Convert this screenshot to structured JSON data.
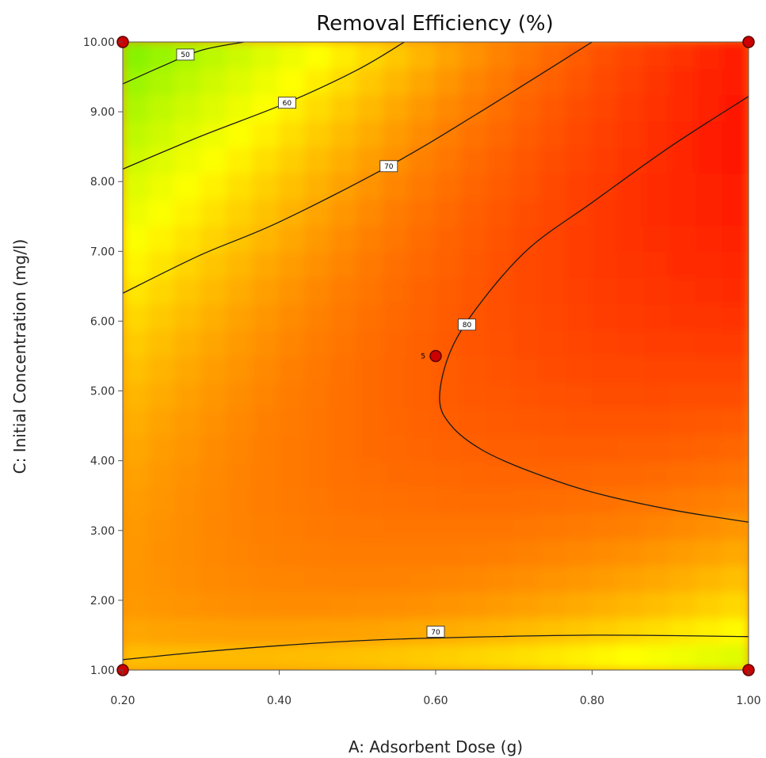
{
  "chart_data": {
    "type": "contour",
    "title": "Removal Efficiency (%)",
    "xlabel": "A: Adsorbent Dose (g)",
    "ylabel": "C: Initial Concentration (mg/l)",
    "xlim": [
      0.2,
      1.0
    ],
    "ylim": [
      1.0,
      10.0
    ],
    "x_ticks": [
      "0.20",
      "0.40",
      "0.60",
      "0.80",
      "1.00"
    ],
    "y_ticks": [
      "1.00",
      "2.00",
      "3.00",
      "4.00",
      "5.00",
      "6.00",
      "7.00",
      "8.00",
      "9.00",
      "10.00"
    ],
    "colormap": [
      "#00e600",
      "#ffff00",
      "#ff7f00",
      "#ff0000"
    ],
    "contours": [
      {
        "level": "50",
        "label_pos": [
          0.28,
          9.82
        ],
        "points": [
          [
            0.2,
            9.4
          ],
          [
            0.25,
            9.65
          ],
          [
            0.3,
            9.88
          ],
          [
            0.355,
            10.0
          ]
        ]
      },
      {
        "level": "60",
        "label_pos": [
          0.41,
          9.13
        ],
        "points": [
          [
            0.2,
            8.18
          ],
          [
            0.3,
            8.65
          ],
          [
            0.41,
            9.13
          ],
          [
            0.5,
            9.6
          ],
          [
            0.56,
            10.0
          ]
        ]
      },
      {
        "level": "70",
        "label_pos": [
          0.54,
          8.22
        ],
        "points": [
          [
            0.2,
            6.4
          ],
          [
            0.3,
            6.95
          ],
          [
            0.4,
            7.42
          ],
          [
            0.54,
            8.22
          ],
          [
            0.65,
            8.95
          ],
          [
            0.8,
            10.0
          ]
        ]
      },
      {
        "level": "80",
        "label_pos": [
          0.64,
          5.95
        ],
        "points": [
          [
            1.0,
            9.22
          ],
          [
            0.9,
            8.5
          ],
          [
            0.8,
            7.7
          ],
          [
            0.72,
            7.05
          ],
          [
            0.66,
            6.3
          ],
          [
            0.62,
            5.6
          ],
          [
            0.605,
            4.9
          ],
          [
            0.62,
            4.5
          ],
          [
            0.66,
            4.15
          ],
          [
            0.72,
            3.85
          ],
          [
            0.8,
            3.55
          ],
          [
            0.9,
            3.3
          ],
          [
            1.0,
            3.12
          ]
        ]
      },
      {
        "level": "70",
        "label_pos": [
          0.6,
          1.55
        ],
        "points": [
          [
            0.2,
            1.15
          ],
          [
            0.3,
            1.26
          ],
          [
            0.4,
            1.35
          ],
          [
            0.5,
            1.42
          ],
          [
            0.6,
            1.46
          ],
          [
            0.8,
            1.5
          ],
          [
            1.0,
            1.48
          ]
        ]
      }
    ],
    "design_points": [
      {
        "x": 0.2,
        "y": 10.0
      },
      {
        "x": 1.0,
        "y": 10.0
      },
      {
        "x": 0.2,
        "y": 1.0
      },
      {
        "x": 1.0,
        "y": 1.0
      },
      {
        "x": 0.6,
        "y": 5.5,
        "label": "5"
      }
    ],
    "grid": false,
    "legend": "none",
    "colors": {
      "point_fill": "#cc0000",
      "point_stroke": "#5a0000",
      "line": "#1a1a1a"
    }
  }
}
